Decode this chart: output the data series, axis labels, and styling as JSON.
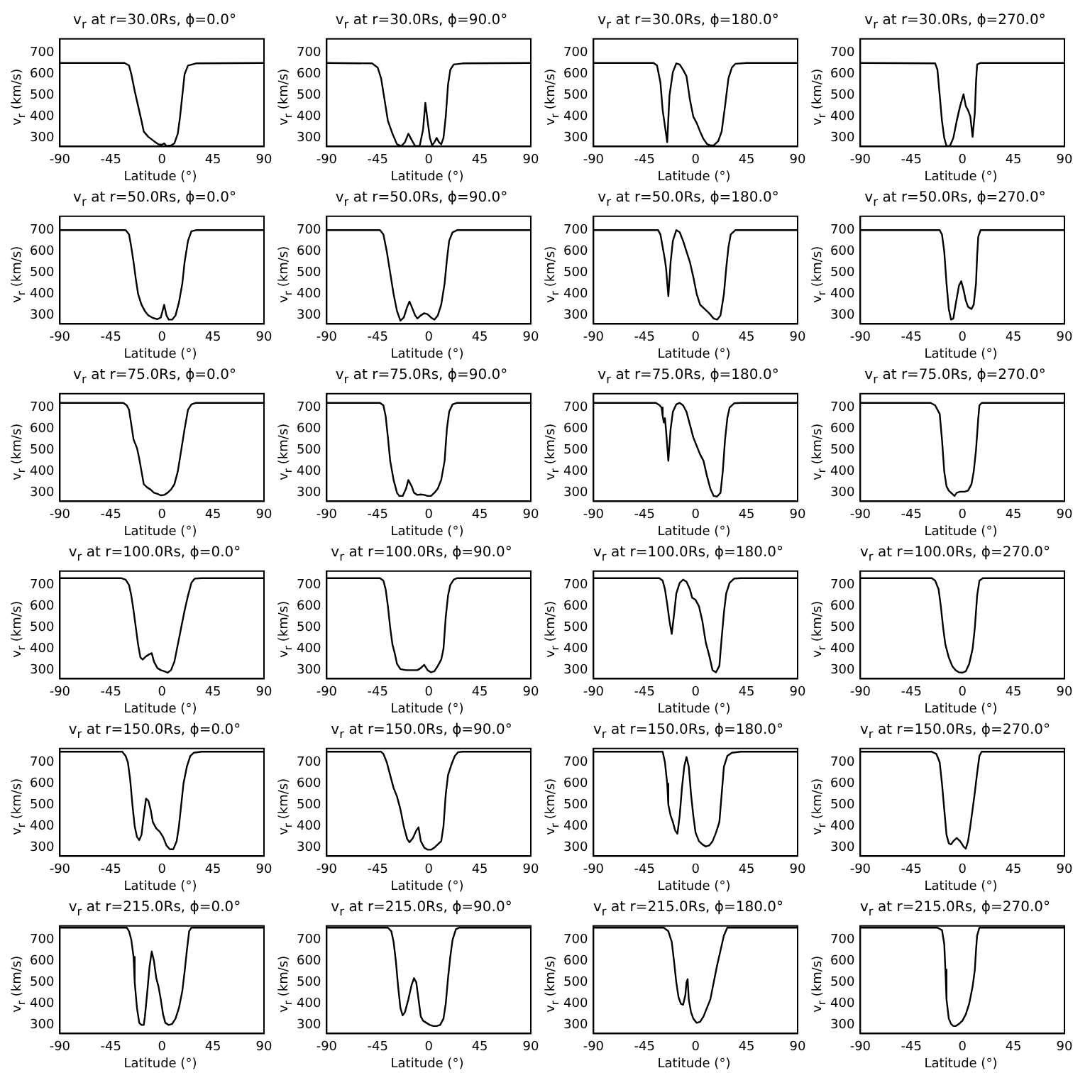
{
  "chart_data": [
    {
      "type": "line",
      "title": "v$_{r}$ at r=30.0Rs, ϕ=0.0°",
      "xlabel": "Latitude (°)",
      "ylabel": "v$_{r}$ (km/s)",
      "color": "#000000",
      "xlim": [
        -90,
        90
      ],
      "xticks": [
        -90,
        -45,
        0,
        45,
        90
      ],
      "ylim": [
        260,
        765
      ],
      "yticks": [
        300,
        400,
        500,
        600,
        700
      ],
      "x": [
        -90,
        -33,
        -29,
        -27,
        -24,
        -21,
        -18,
        -16,
        -12,
        -7,
        -3,
        0,
        2,
        4,
        8,
        11,
        14,
        16,
        18,
        20,
        23,
        30,
        90
      ],
      "values": [
        652,
        652,
        640,
        600,
        520,
        450,
        380,
        330,
        305,
        285,
        270,
        268,
        275,
        262,
        265,
        275,
        320,
        400,
        500,
        600,
        640,
        650,
        652
      ]
    },
    {
      "type": "line",
      "title": "v$_{r}$ at r=30.0Rs, ϕ=90.0°",
      "xlabel": "Latitude (°)",
      "ylabel": "v$_{r}$ (km/s)",
      "color": "#000000",
      "xlim": [
        -90,
        90
      ],
      "xticks": [
        -90,
        -45,
        0,
        45,
        90
      ],
      "ylim": [
        260,
        765
      ],
      "yticks": [
        300,
        400,
        500,
        600,
        700
      ],
      "x": [
        -90,
        -50,
        -45,
        -42,
        -39,
        -36,
        -32,
        -28,
        -24,
        -21,
        -18,
        -15,
        -12,
        -8,
        -5,
        -3,
        -1,
        1,
        3,
        5,
        7,
        9,
        11,
        13,
        15,
        17,
        19,
        22,
        30,
        90
      ],
      "values": [
        652,
        650,
        630,
        580,
        480,
        380,
        320,
        270,
        262,
        280,
        320,
        290,
        262,
        262,
        340,
        465,
        380,
        300,
        265,
        280,
        300,
        280,
        270,
        300,
        400,
        550,
        620,
        645,
        650,
        652
      ]
    },
    {
      "type": "line",
      "title": "v$_{r}$ at r=30.0Rs, ϕ=180.0°",
      "xlabel": "Latitude (°)",
      "ylabel": "v$_{r}$ (km/s)",
      "color": "#000000",
      "xlim": [
        -90,
        90
      ],
      "xticks": [
        -90,
        -45,
        0,
        45,
        90
      ],
      "ylim": [
        260,
        765
      ],
      "yticks": [
        300,
        400,
        500,
        600,
        700
      ],
      "x": [
        -90,
        -37,
        -34,
        -31,
        -29,
        -25,
        -23,
        -20,
        -17,
        -14,
        -11,
        -8,
        -5,
        -2,
        1,
        4,
        7,
        10,
        13,
        16,
        20,
        23,
        26,
        29,
        32,
        35,
        45,
        90
      ],
      "values": [
        652,
        652,
        640,
        560,
        430,
        280,
        500,
        610,
        650,
        645,
        620,
        590,
        480,
        400,
        370,
        330,
        295,
        272,
        265,
        265,
        285,
        330,
        450,
        580,
        630,
        648,
        652,
        652
      ]
    },
    {
      "type": "line",
      "title": "v$_{r}$ at r=30.0Rs, ϕ=270.0°",
      "xlabel": "Latitude (°)",
      "ylabel": "v$_{r}$ (km/s)",
      "color": "#000000",
      "xlim": [
        -90,
        90
      ],
      "xticks": [
        -90,
        -45,
        0,
        45,
        90
      ],
      "ylim": [
        260,
        765
      ],
      "yticks": [
        300,
        400,
        500,
        600,
        700
      ],
      "x": [
        -90,
        -24,
        -22,
        -20,
        -18,
        -16,
        -14,
        -11,
        -8,
        -5,
        -2,
        1,
        3,
        5,
        7,
        9,
        11,
        12,
        13,
        16,
        90
      ],
      "values": [
        652,
        650,
        620,
        500,
        380,
        300,
        262,
        262,
        300,
        380,
        450,
        505,
        450,
        430,
        400,
        305,
        420,
        560,
        645,
        652,
        652
      ]
    },
    {
      "type": "line",
      "title": "v$_{r}$ at r=50.0Rs, ϕ=0.0°",
      "xlabel": "Latitude (°)",
      "ylabel": "v$_{r}$ (km/s)",
      "color": "#000000",
      "xlim": [
        -90,
        90
      ],
      "xticks": [
        -90,
        -45,
        0,
        45,
        90
      ],
      "ylim": [
        260,
        765
      ],
      "yticks": [
        300,
        400,
        500,
        600,
        700
      ],
      "x": [
        -90,
        -32,
        -29,
        -27,
        -25,
        -23,
        -21,
        -18,
        -15,
        -12,
        -8,
        -4,
        -1,
        2,
        4,
        6,
        9,
        12,
        15,
        18,
        20,
        23,
        26,
        30,
        90
      ],
      "values": [
        700,
        700,
        680,
        620,
        550,
        470,
        400,
        350,
        320,
        300,
        288,
        282,
        290,
        350,
        300,
        280,
        280,
        300,
        360,
        450,
        550,
        650,
        695,
        700,
        700
      ]
    },
    {
      "type": "line",
      "title": "v$_{r}$ at r=50.0Rs, ϕ=90.0°",
      "xlabel": "Latitude (°)",
      "ylabel": "v$_{r}$ (km/s)",
      "color": "#000000",
      "xlim": [
        -90,
        90
      ],
      "xticks": [
        -90,
        -45,
        0,
        45,
        90
      ],
      "ylim": [
        260,
        765
      ],
      "yticks": [
        300,
        400,
        500,
        600,
        700
      ],
      "x": [
        -90,
        -43,
        -40,
        -37,
        -34,
        -31,
        -28,
        -25,
        -22,
        -19,
        -17,
        -15,
        -12,
        -10,
        -7,
        -4,
        -1,
        2,
        5,
        8,
        11,
        14,
        16,
        18,
        21,
        25,
        90
      ],
      "values": [
        700,
        700,
        680,
        600,
        500,
        400,
        320,
        275,
        290,
        340,
        365,
        340,
        300,
        285,
        300,
        310,
        305,
        290,
        280,
        300,
        350,
        450,
        560,
        650,
        690,
        700,
        700
      ]
    },
    {
      "type": "line",
      "title": "v$_{r}$ at r=50.0Rs, ϕ=180.0°",
      "xlabel": "Latitude (°)",
      "ylabel": "v$_{r}$ (km/s)",
      "color": "#000000",
      "xlim": [
        -90,
        90
      ],
      "xticks": [
        -90,
        -45,
        0,
        45,
        90
      ],
      "ylim": [
        260,
        765
      ],
      "yticks": [
        300,
        400,
        500,
        600,
        700
      ],
      "x": [
        -90,
        -33,
        -31,
        -29,
        -27,
        -26,
        -24,
        -22,
        -20,
        -17,
        -14,
        -11,
        -8,
        -5,
        -2,
        1,
        4,
        8,
        12,
        16,
        19,
        22,
        25,
        27,
        29,
        31,
        35,
        90
      ],
      "values": [
        700,
        700,
        680,
        620,
        560,
        520,
        390,
        550,
        650,
        700,
        690,
        650,
        600,
        550,
        480,
        400,
        350,
        330,
        310,
        285,
        280,
        300,
        400,
        520,
        620,
        680,
        700,
        700
      ]
    },
    {
      "type": "line",
      "title": "v$_{r}$ at r=50.0Rs, ϕ=270.0°",
      "xlabel": "Latitude (°)",
      "ylabel": "v$_{r}$ (km/s)",
      "color": "#000000",
      "xlim": [
        -90,
        90
      ],
      "xticks": [
        -90,
        -45,
        0,
        45,
        90
      ],
      "ylim": [
        260,
        765
      ],
      "yticks": [
        300,
        400,
        500,
        600,
        700
      ],
      "x": [
        -90,
        -20,
        -18,
        -16,
        -14,
        -12,
        -10,
        -8,
        -6,
        -3,
        -1,
        1,
        3,
        5,
        8,
        10,
        12,
        13,
        14,
        16,
        90
      ],
      "values": [
        700,
        700,
        680,
        600,
        450,
        330,
        280,
        285,
        350,
        440,
        460,
        420,
        370,
        340,
        330,
        350,
        450,
        580,
        670,
        700,
        700
      ]
    },
    {
      "type": "line",
      "title": "v$_{r}$ at r=75.0Rs, ϕ=0.0°",
      "xlabel": "Latitude (°)",
      "ylabel": "v$_{r}$ (km/s)",
      "color": "#000000",
      "xlim": [
        -90,
        90
      ],
      "xticks": [
        -90,
        -45,
        0,
        45,
        90
      ],
      "ylim": [
        260,
        765
      ],
      "yticks": [
        300,
        400,
        500,
        600,
        700
      ],
      "x": [
        -90,
        -34,
        -31,
        -29,
        -27,
        -25,
        -22,
        -20,
        -18,
        -16,
        -13,
        -10,
        -7,
        -4,
        -1,
        2,
        5,
        8,
        11,
        14,
        17,
        20,
        23,
        26,
        30,
        90
      ],
      "values": [
        722,
        722,
        710,
        690,
        620,
        550,
        510,
        460,
        400,
        340,
        325,
        315,
        300,
        295,
        288,
        290,
        300,
        315,
        340,
        400,
        500,
        600,
        690,
        715,
        722,
        722
      ]
    },
    {
      "type": "line",
      "title": "v$_{r}$ at r=75.0Rs, ϕ=90.0°",
      "xlabel": "Latitude (°)",
      "ylabel": "v$_{r}$ (km/s)",
      "color": "#000000",
      "xlim": [
        -90,
        90
      ],
      "xticks": [
        -90,
        -45,
        0,
        45,
        90
      ],
      "ylim": [
        260,
        765
      ],
      "yticks": [
        300,
        400,
        500,
        600,
        700
      ],
      "x": [
        -90,
        -43,
        -40,
        -38,
        -36,
        -34,
        -31,
        -28,
        -26,
        -23,
        -20,
        -18,
        -15,
        -13,
        -10,
        -7,
        -4,
        -1,
        2,
        5,
        8,
        11,
        14,
        16,
        18,
        21,
        25,
        90
      ],
      "values": [
        722,
        722,
        710,
        660,
        560,
        450,
        360,
        300,
        285,
        285,
        320,
        360,
        330,
        300,
        290,
        292,
        290,
        285,
        285,
        300,
        320,
        360,
        450,
        600,
        680,
        715,
        722,
        722
      ]
    },
    {
      "type": "line",
      "title": "v$_{r}$ at r=75.0Rs, ϕ=180.0°",
      "xlabel": "Latitude (°)",
      "ylabel": "v$_{r}$ (km/s)",
      "color": "#000000",
      "xlim": [
        -90,
        90
      ],
      "xticks": [
        -90,
        -45,
        0,
        45,
        90
      ],
      "ylim": [
        260,
        765
      ],
      "yticks": [
        300,
        400,
        500,
        600,
        700
      ],
      "x": [
        -90,
        -35,
        -32,
        -30,
        -29,
        -28,
        -27,
        -26,
        -24,
        -22,
        -20,
        -17,
        -14,
        -11,
        -8,
        -5,
        -2,
        1,
        4,
        7,
        10,
        13,
        16,
        19,
        22,
        24,
        26,
        28,
        30,
        34,
        40,
        90
      ],
      "values": [
        722,
        722,
        712,
        700,
        660,
        630,
        650,
        590,
        450,
        600,
        680,
        715,
        722,
        710,
        680,
        620,
        560,
        520,
        480,
        450,
        380,
        320,
        285,
        282,
        300,
        400,
        550,
        650,
        700,
        720,
        722,
        722
      ]
    },
    {
      "type": "line",
      "title": "v$_{r}$ at r=75.0Rs, ϕ=270.0°",
      "xlabel": "Latitude (°)",
      "ylabel": "v$_{r}$ (km/s)",
      "color": "#000000",
      "xlim": [
        -90,
        90
      ],
      "xticks": [
        -90,
        -45,
        0,
        45,
        90
      ],
      "ylim": [
        260,
        765
      ],
      "yticks": [
        300,
        400,
        500,
        600,
        700
      ],
      "x": [
        -90,
        -28,
        -24,
        -20,
        -18,
        -16,
        -14,
        -12,
        -9,
        -7,
        -5,
        -2,
        2,
        5,
        8,
        10,
        12,
        14,
        15,
        17,
        90
      ],
      "values": [
        722,
        722,
        710,
        670,
        550,
        400,
        330,
        310,
        295,
        285,
        300,
        305,
        305,
        310,
        340,
        400,
        500,
        650,
        710,
        722,
        722
      ]
    },
    {
      "type": "line",
      "title": "v$_{r}$ at r=100.0Rs, ϕ=0.0°",
      "xlabel": "Latitude (°)",
      "ylabel": "v$_{r}$ (km/s)",
      "color": "#000000",
      "xlim": [
        -90,
        90
      ],
      "xticks": [
        -90,
        -45,
        0,
        45,
        90
      ],
      "ylim": [
        260,
        765
      ],
      "yticks": [
        300,
        400,
        500,
        600,
        700
      ],
      "x": [
        -90,
        -36,
        -32,
        -29,
        -27,
        -25,
        -23,
        -21,
        -19,
        -17,
        -14,
        -11,
        -9,
        -7,
        -4,
        -1,
        2,
        5,
        8,
        11,
        14,
        17,
        20,
        23,
        26,
        29,
        35,
        90
      ],
      "values": [
        732,
        732,
        725,
        700,
        650,
        580,
        500,
        420,
        360,
        350,
        365,
        375,
        380,
        340,
        310,
        300,
        295,
        288,
        300,
        340,
        420,
        500,
        580,
        650,
        710,
        730,
        732,
        732
      ]
    },
    {
      "type": "line",
      "title": "v$_{r}$ at r=100.0Rs, ϕ=90.0°",
      "xlabel": "Latitude (°)",
      "ylabel": "v$_{r}$ (km/s)",
      "color": "#000000",
      "xlim": [
        -90,
        90
      ],
      "xticks": [
        -90,
        -45,
        0,
        45,
        90
      ],
      "ylim": [
        260,
        765
      ],
      "yticks": [
        300,
        400,
        500,
        600,
        700
      ],
      "x": [
        -90,
        -43,
        -40,
        -38,
        -36,
        -34,
        -32,
        -30,
        -28,
        -25,
        -20,
        -15,
        -10,
        -7,
        -4,
        -1,
        2,
        5,
        8,
        11,
        13,
        15,
        17,
        19,
        22,
        25,
        90
      ],
      "values": [
        732,
        732,
        720,
        680,
        600,
        500,
        420,
        380,
        330,
        305,
        300,
        300,
        300,
        310,
        325,
        300,
        290,
        295,
        320,
        350,
        400,
        550,
        650,
        700,
        725,
        732,
        732
      ]
    },
    {
      "type": "line",
      "title": "v$_{r}$ at r=100.0Rs, ϕ=180.0°",
      "xlabel": "Latitude (°)",
      "ylabel": "v$_{r}$ (km/s)",
      "color": "#000000",
      "xlim": [
        -90,
        90
      ],
      "xticks": [
        -90,
        -45,
        0,
        45,
        90
      ],
      "ylim": [
        260,
        765
      ],
      "yticks": [
        300,
        400,
        500,
        600,
        700
      ],
      "x": [
        -90,
        -32,
        -29,
        -27,
        -25,
        -23,
        -21,
        -19,
        -17,
        -14,
        -11,
        -8,
        -5,
        -3,
        0,
        3,
        6,
        9,
        12,
        15,
        18,
        21,
        23,
        25,
        27,
        30,
        34,
        40,
        90
      ],
      "values": [
        732,
        732,
        720,
        680,
        610,
        530,
        470,
        560,
        660,
        710,
        725,
        715,
        680,
        640,
        630,
        600,
        530,
        430,
        370,
        300,
        290,
        320,
        450,
        570,
        660,
        710,
        730,
        732,
        732
      ]
    },
    {
      "type": "line",
      "title": "v$_{r}$ at r=100.0Rs, ϕ=270.0°",
      "xlabel": "Latitude (°)",
      "ylabel": "v$_{r}$ (km/s)",
      "color": "#000000",
      "xlim": [
        -90,
        90
      ],
      "xticks": [
        -90,
        -45,
        0,
        45,
        90
      ],
      "ylim": [
        260,
        765
      ],
      "yticks": [
        300,
        400,
        500,
        600,
        700
      ],
      "x": [
        -90,
        -27,
        -24,
        -21,
        -19,
        -17,
        -15,
        -12,
        -9,
        -6,
        -3,
        0,
        3,
        6,
        9,
        11,
        13,
        15,
        18,
        90
      ],
      "values": [
        732,
        732,
        720,
        680,
        600,
        500,
        420,
        360,
        320,
        300,
        290,
        288,
        295,
        330,
        400,
        500,
        650,
        720,
        732,
        732
      ]
    },
    {
      "type": "line",
      "title": "v$_{r}$ at r=150.0Rs, ϕ=0.0°",
      "xlabel": "Latitude (°)",
      "ylabel": "v$_{r}$ (km/s)",
      "color": "#000000",
      "xlim": [
        -90,
        90
      ],
      "xticks": [
        -90,
        -45,
        0,
        45,
        90
      ],
      "ylim": [
        260,
        765
      ],
      "yticks": [
        300,
        400,
        500,
        600,
        700
      ],
      "x": [
        -90,
        -35,
        -32,
        -30,
        -28,
        -26,
        -24,
        -22,
        -20,
        -18,
        -16,
        -14,
        -12,
        -10,
        -8,
        -5,
        -2,
        1,
        4,
        7,
        10,
        13,
        15,
        17,
        19,
        22,
        25,
        28,
        35,
        90
      ],
      "values": [
        750,
        750,
        730,
        700,
        620,
        500,
        400,
        350,
        335,
        360,
        450,
        530,
        520,
        480,
        420,
        390,
        375,
        350,
        310,
        292,
        292,
        330,
        400,
        500,
        600,
        680,
        730,
        745,
        750,
        750
      ]
    },
    {
      "type": "line",
      "title": "v$_{r}$ at r=150.0Rs, ϕ=90.0°",
      "xlabel": "Latitude (°)",
      "ylabel": "v$_{r}$ (km/s)",
      "color": "#000000",
      "xlim": [
        -90,
        90
      ],
      "xticks": [
        -90,
        -45,
        0,
        45,
        90
      ],
      "ylim": [
        260,
        765
      ],
      "yticks": [
        300,
        400,
        500,
        600,
        700
      ],
      "x": [
        -90,
        -42,
        -40,
        -37,
        -34,
        -31,
        -28,
        -25,
        -22,
        -19,
        -17,
        -14,
        -11,
        -9,
        -7,
        -4,
        -1,
        2,
        5,
        8,
        11,
        13,
        15,
        17,
        20,
        23,
        26,
        30,
        90
      ],
      "values": [
        750,
        750,
        740,
        700,
        640,
        580,
        540,
        480,
        400,
        340,
        325,
        345,
        380,
        395,
        330,
        300,
        290,
        290,
        300,
        315,
        330,
        400,
        550,
        640,
        690,
        730,
        748,
        750,
        750
      ]
    },
    {
      "type": "line",
      "title": "v$_{r}$ at r=150.0Rs, ϕ=180.0°",
      "xlabel": "Latitude (°)",
      "ylabel": "v$_{r}$ (km/s)",
      "color": "#000000",
      "xlim": [
        -90,
        90
      ],
      "xticks": [
        -90,
        -45,
        0,
        45,
        90
      ],
      "ylim": [
        260,
        765
      ],
      "yticks": [
        300,
        400,
        500,
        600,
        700
      ],
      "x": [
        -90,
        -29,
        -27,
        -25,
        -24,
        -22,
        -20,
        -18,
        -16,
        -14,
        -12,
        -10,
        -8,
        -6,
        -4,
        -2,
        0,
        3,
        6,
        9,
        12,
        15,
        18,
        21,
        23,
        25,
        28,
        32,
        40,
        90
      ],
      "values": [
        750,
        750,
        700,
        600,
        500,
        450,
        420,
        380,
        365,
        450,
        580,
        680,
        725,
        680,
        550,
        450,
        370,
        330,
        315,
        305,
        310,
        330,
        370,
        420,
        550,
        680,
        730,
        745,
        750,
        750
      ]
    },
    {
      "type": "line",
      "title": "v$_{r}$ at r=150.0Rs, ϕ=270.0°",
      "xlabel": "Latitude (°)",
      "ylabel": "v$_{r}$ (km/s)",
      "color": "#000000",
      "xlim": [
        -90,
        90
      ],
      "xticks": [
        -90,
        -45,
        0,
        45,
        90
      ],
      "ylim": [
        260,
        765
      ],
      "yticks": [
        300,
        400,
        500,
        600,
        700
      ],
      "x": [
        -90,
        -27,
        -23,
        -20,
        -18,
        -16,
        -14,
        -12,
        -10,
        -8,
        -5,
        -2,
        1,
        3,
        5,
        7,
        9,
        11,
        13,
        15,
        17,
        90
      ],
      "values": [
        750,
        750,
        740,
        700,
        600,
        480,
        360,
        320,
        315,
        330,
        345,
        330,
        305,
        295,
        330,
        400,
        480,
        560,
        650,
        730,
        750,
        750
      ]
    },
    {
      "type": "line",
      "title": "v$_{r}$ at r=215.0Rs, ϕ=0.0°",
      "xlabel": "Latitude (°)",
      "ylabel": "v$_{r}$ (km/s)",
      "color": "#000000",
      "xlim": [
        -90,
        90
      ],
      "xticks": [
        -90,
        -45,
        0,
        45,
        90
      ],
      "ylim": [
        260,
        765
      ],
      "yticks": [
        300,
        400,
        500,
        600,
        700
      ],
      "x": [
        -90,
        -31,
        -29,
        -27,
        -25,
        -24,
        -22,
        -20,
        -18,
        -16,
        -15,
        -13,
        -11,
        -9,
        -7,
        -5,
        -3,
        -1,
        1,
        3,
        6,
        9,
        12,
        15,
        18,
        20,
        22,
        24,
        26,
        90
      ],
      "values": [
        757,
        757,
        740,
        700,
        620,
        500,
        380,
        310,
        300,
        300,
        340,
        450,
        570,
        645,
        600,
        520,
        480,
        420,
        350,
        310,
        300,
        305,
        330,
        380,
        460,
        550,
        650,
        740,
        757,
        757
      ]
    },
    {
      "type": "line",
      "title": "v$_{r}$ at r=215.0Rs, ϕ=90.0°",
      "xlabel": "Latitude (°)",
      "ylabel": "v$_{r}$ (km/s)",
      "color": "#000000",
      "xlim": [
        -90,
        90
      ],
      "xticks": [
        -90,
        -45,
        0,
        45,
        90
      ],
      "ylim": [
        260,
        765
      ],
      "yticks": [
        300,
        400,
        500,
        600,
        700
      ],
      "x": [
        -90,
        -36,
        -33,
        -31,
        -29,
        -27,
        -25,
        -23,
        -21,
        -18,
        -15,
        -13,
        -11,
        -9,
        -7,
        -5,
        -2,
        1,
        4,
        7,
        10,
        13,
        15,
        17,
        19,
        21,
        24,
        27,
        90
      ],
      "values": [
        757,
        757,
        740,
        690,
        600,
        480,
        380,
        345,
        360,
        420,
        490,
        520,
        500,
        420,
        340,
        320,
        310,
        300,
        295,
        295,
        300,
        330,
        400,
        520,
        620,
        700,
        750,
        757,
        757
      ]
    },
    {
      "type": "line",
      "title": "v$_{r}$ at r=215.0Rs, ϕ=180.0°",
      "xlabel": "Latitude (°)",
      "ylabel": "v$_{r}$ (km/s)",
      "color": "#000000",
      "xlim": [
        -90,
        90
      ],
      "xticks": [
        -90,
        -45,
        0,
        45,
        90
      ],
      "ylim": [
        260,
        765
      ],
      "yticks": [
        300,
        400,
        500,
        600,
        700
      ],
      "x": [
        -90,
        -28,
        -24,
        -21,
        -19,
        -17,
        -15,
        -13,
        -11,
        -9,
        -8,
        -7,
        -6,
        -4,
        -2,
        1,
        4,
        7,
        10,
        13,
        16,
        19,
        22,
        25,
        28,
        90
      ],
      "values": [
        757,
        757,
        740,
        690,
        600,
        500,
        430,
        400,
        395,
        440,
        500,
        515,
        420,
        360,
        330,
        310,
        315,
        340,
        380,
        420,
        500,
        580,
        650,
        720,
        757,
        757
      ]
    },
    {
      "type": "line",
      "title": "v$_{r}$ at r=215.0Rs, ϕ=270.0°",
      "xlabel": "Latitude (°)",
      "ylabel": "v$_{r}$ (km/s)",
      "color": "#000000",
      "xlim": [
        -90,
        90
      ],
      "xticks": [
        -90,
        -45,
        0,
        45,
        90
      ],
      "ylim": [
        260,
        765
      ],
      "yticks": [
        300,
        400,
        500,
        600,
        700
      ],
      "x": [
        -90,
        -22,
        -18,
        -16,
        -15,
        -14,
        -12,
        -10,
        -8,
        -6,
        -3,
        0,
        3,
        6,
        9,
        11,
        12,
        13,
        15,
        90
      ],
      "values": [
        757,
        757,
        745,
        680,
        560,
        420,
        330,
        305,
        295,
        295,
        305,
        320,
        350,
        400,
        480,
        560,
        650,
        720,
        757,
        757
      ]
    }
  ]
}
